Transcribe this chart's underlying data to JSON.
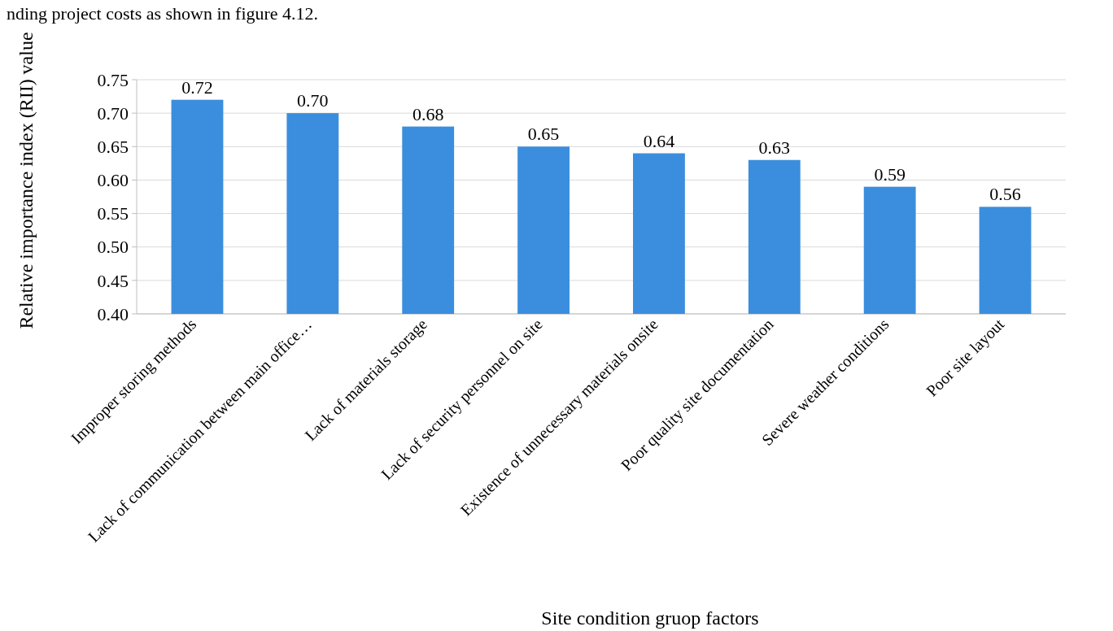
{
  "chart_data": {
    "type": "bar",
    "annotations": [
      "nding project costs as shown in figure 4.12."
    ],
    "xlabel": "Site condition gruop factors",
    "ylabel": "Relative importance index (RII) value",
    "categories": [
      "Improper storing methods",
      "Lack of communication between main office…",
      "Lack of materials storage",
      "Lack of security personnel on site",
      "Existence of unnecessary materials onsite",
      "Poor quality site documentation",
      "Severe weather conditions",
      "Poor site layout"
    ],
    "values": [
      0.72,
      0.7,
      0.68,
      0.65,
      0.64,
      0.63,
      0.59,
      0.56
    ],
    "color": "#3b8ede",
    "value_labels": [
      "0.72",
      "0.70",
      "0.68",
      "0.65",
      "0.64",
      "0.63",
      "0.59",
      "0.56"
    ],
    "ylim": [
      0.4,
      0.75
    ],
    "yticks": [
      {
        "value": 0.4,
        "label": "0.40"
      },
      {
        "value": 0.45,
        "label": "0.45"
      },
      {
        "value": 0.5,
        "label": "0.50"
      },
      {
        "value": 0.55,
        "label": "0.55"
      },
      {
        "value": 0.6,
        "label": "0.60"
      },
      {
        "value": 0.65,
        "label": "0.65"
      },
      {
        "value": 0.7,
        "label": "0.70"
      },
      {
        "value": 0.75,
        "label": "0.75"
      }
    ],
    "grid": "y"
  }
}
